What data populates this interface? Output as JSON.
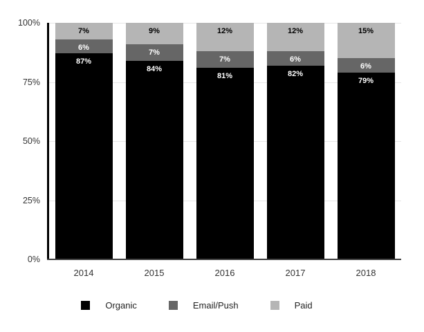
{
  "chart_data": {
    "type": "bar",
    "variant": "stacked-column-percent",
    "title": "",
    "categories": [
      "2014",
      "2015",
      "2016",
      "2017",
      "2018"
    ],
    "series": [
      {
        "name": "Organic",
        "color": "#000000",
        "label_color": "#ffffff",
        "values": [
          87,
          84,
          81,
          82,
          79
        ]
      },
      {
        "name": "Email/Push",
        "color": "#666666",
        "label_color": "#ffffff",
        "values": [
          6,
          7,
          7,
          6,
          6
        ]
      },
      {
        "name": "Paid",
        "color": "#b5b5b5",
        "label_color": "#000000",
        "values": [
          7,
          9,
          12,
          12,
          15
        ]
      }
    ],
    "value_suffix": "%",
    "y_ticks": [
      {
        "value": 0,
        "label": "0%"
      },
      {
        "value": 25,
        "label": "25%"
      },
      {
        "value": 50,
        "label": "50%"
      },
      {
        "value": 75,
        "label": "75%"
      },
      {
        "value": 100,
        "label": "100%"
      }
    ],
    "ylim": [
      0,
      100
    ],
    "grid": true,
    "legend_position": "bottom",
    "colors": {
      "background": "#ffffff",
      "gridline": "#e6e6e6",
      "y_axis_line": "#000000",
      "x_axis_line": "#3d3d3d",
      "tick_label": "#333333",
      "legend_label": "#222222"
    }
  }
}
